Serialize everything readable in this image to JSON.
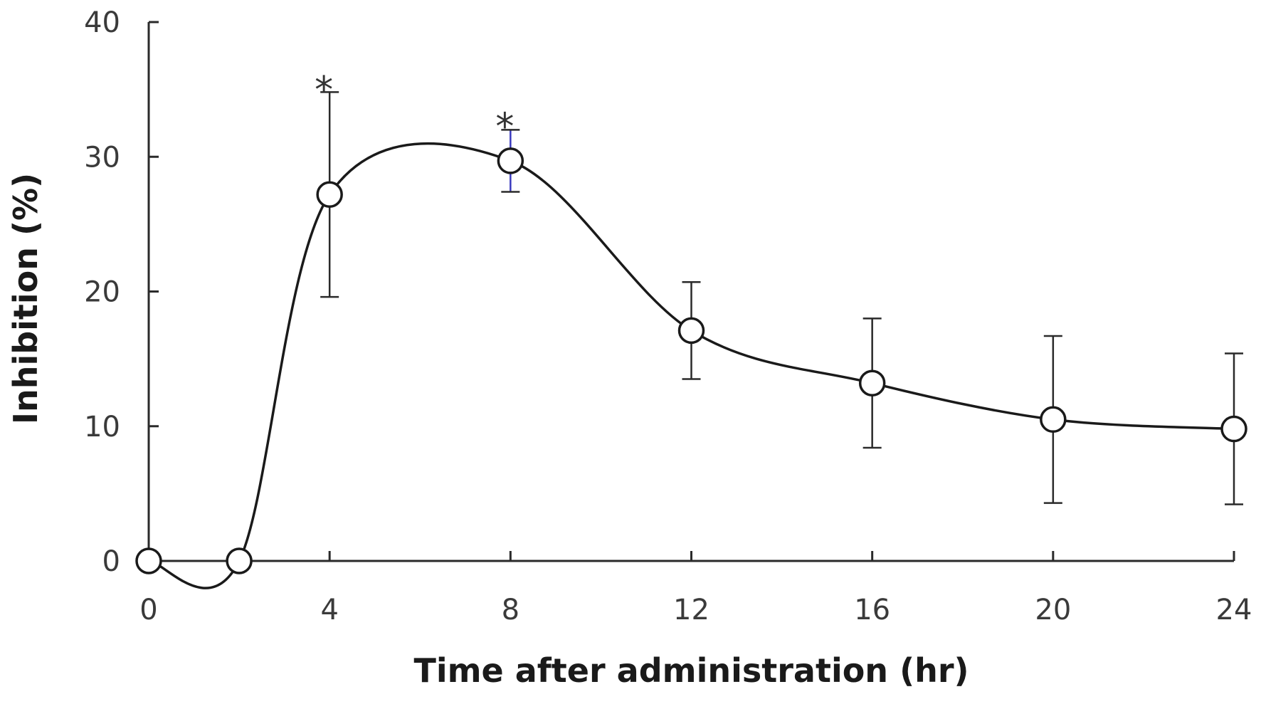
{
  "chart_data": {
    "type": "line",
    "title": "",
    "xlabel": "Time after administration (hr)",
    "ylabel": "Inhibition (%)",
    "xlim": [
      0,
      24
    ],
    "ylim": [
      0,
      40
    ],
    "xticks": [
      "0",
      "4",
      "8",
      "12",
      "16",
      "20",
      "24"
    ],
    "yticks": [
      "0",
      "10",
      "20",
      "30",
      "40"
    ],
    "grid": false,
    "legend": "none",
    "series": [
      {
        "x": [
          0,
          2,
          4,
          8,
          12,
          16,
          20,
          24
        ],
        "y": [
          0,
          0,
          27.2,
          29.7,
          17.1,
          13.2,
          10.5,
          9.8
        ],
        "error": [
          0,
          0,
          7.6,
          2.3,
          3.6,
          4.8,
          6.2,
          5.6
        ],
        "marker": "open-circle"
      }
    ],
    "annotations": [
      {
        "text": "*",
        "x": 4,
        "y": 35.5
      },
      {
        "text": "*",
        "x": 8,
        "y": 32.8
      }
    ],
    "colors": {
      "line": "#1a1a1a",
      "axis": "#2a2a2a",
      "errorbar": "#2a2a2a",
      "highlight_errorbar": "#3b3bbf",
      "marker_fill": "#ffffff"
    }
  }
}
